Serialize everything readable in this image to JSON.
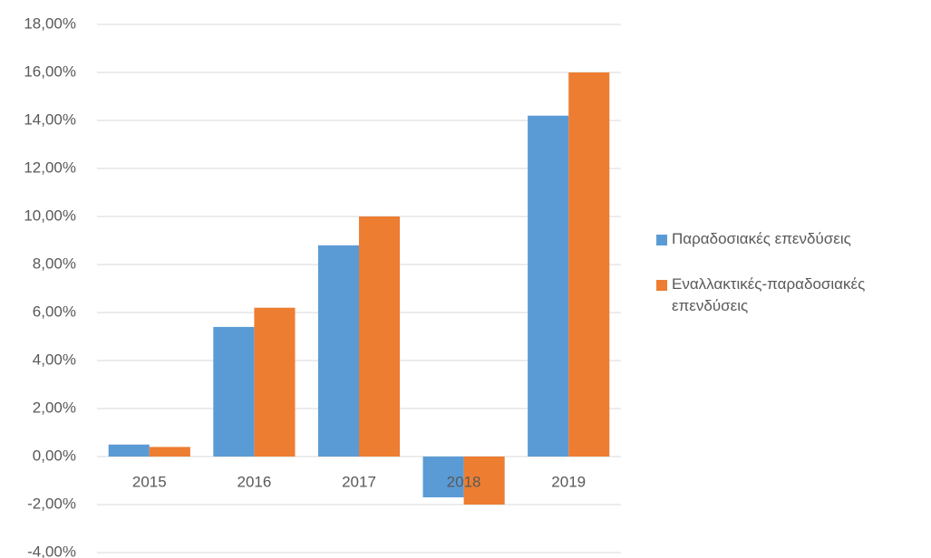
{
  "chart_data": {
    "type": "bar",
    "categories": [
      "2015",
      "2016",
      "2017",
      "2018",
      "2019"
    ],
    "series": [
      {
        "name": "Παραδοσιακές επενδύσεις",
        "color": "#5b9bd5",
        "values": [
          0.5,
          5.4,
          8.8,
          -1.7,
          14.2
        ]
      },
      {
        "name": "Εναλλακτικές-παραδοσιακές επενδύσεις",
        "color": "#ed7d31",
        "values": [
          0.4,
          6.2,
          10.0,
          -2.0,
          16.0
        ]
      }
    ],
    "ylim": [
      -4,
      18
    ],
    "yticks": [
      {
        "value": -4,
        "label": "-4,00%"
      },
      {
        "value": -2,
        "label": "-2,00%"
      },
      {
        "value": 0,
        "label": "0,00%"
      },
      {
        "value": 2,
        "label": "2,00%"
      },
      {
        "value": 4,
        "label": "4,00%"
      },
      {
        "value": 6,
        "label": "6,00%"
      },
      {
        "value": 8,
        "label": "8,00%"
      },
      {
        "value": 10,
        "label": "10,00%"
      },
      {
        "value": 12,
        "label": "12,00%"
      },
      {
        "value": 14,
        "label": "14,00%"
      },
      {
        "value": 16,
        "label": "16,00%"
      },
      {
        "value": 18,
        "label": "18,00%"
      }
    ],
    "grid": true,
    "legend": "right"
  }
}
